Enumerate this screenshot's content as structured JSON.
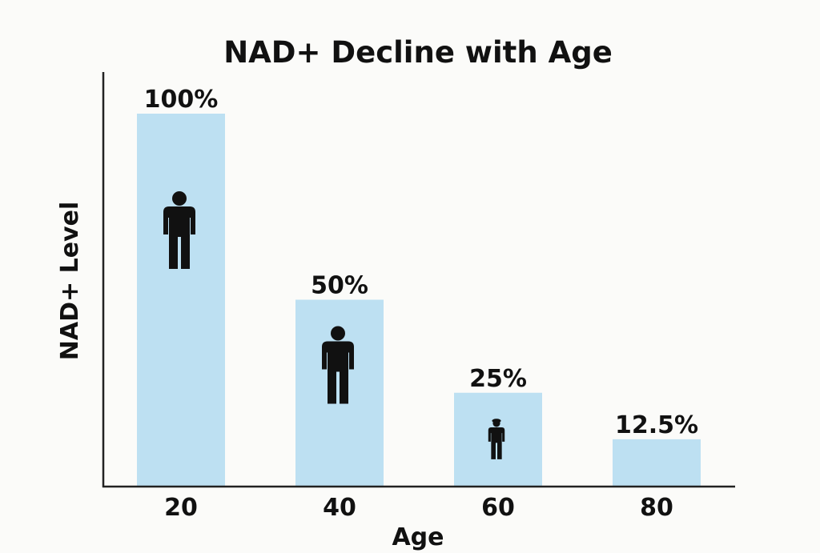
{
  "chart_data": {
    "type": "bar",
    "title": "NAD+ Decline with Age",
    "xlabel": "Age",
    "ylabel": "NAD+ Level",
    "categories": [
      "20",
      "40",
      "60",
      "80"
    ],
    "values": [
      100,
      50,
      25,
      12.5
    ],
    "data_labels": [
      "100%",
      "50%",
      "25%",
      "12.5%"
    ],
    "ylim": [
      0,
      100
    ],
    "grid": false,
    "legend": "none",
    "bar_color": "#bde0f2",
    "icons": [
      "person-icon",
      "person-icon",
      "person-elderly-icon",
      null
    ]
  }
}
